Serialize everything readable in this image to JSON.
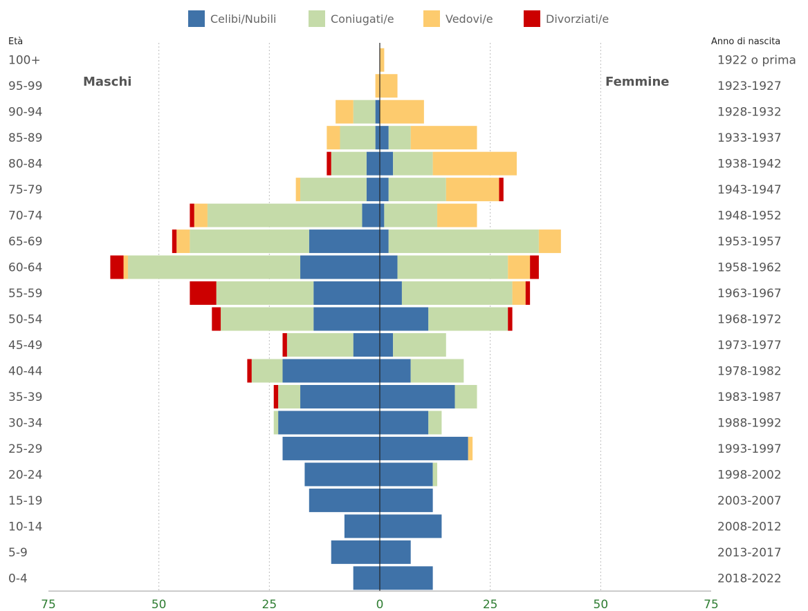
{
  "chart_data": {
    "type": "bar",
    "orientation": "horizontal-pyramid",
    "age_axis_title": "Età",
    "birth_axis_title": "Anno di nascita",
    "left_label": "Maschi",
    "right_label": "Femmine",
    "legend": [
      {
        "name": "Celibi/Nubili",
        "color": "#3f72a8"
      },
      {
        "name": "Coniugati/e",
        "color": "#c5dba9"
      },
      {
        "name": "Vedovi/e",
        "color": "#fdcb6e"
      },
      {
        "name": "Divorziati/e",
        "color": "#cc0000"
      }
    ],
    "xlim": [
      -75,
      75
    ],
    "x_ticks": [
      75,
      50,
      25,
      0,
      25,
      50,
      75
    ],
    "grid": true,
    "legend_position": "top",
    "categories": [
      "100+",
      "95-99",
      "90-94",
      "85-89",
      "80-84",
      "75-79",
      "70-74",
      "65-69",
      "60-64",
      "55-59",
      "50-54",
      "45-49",
      "40-44",
      "35-39",
      "30-34",
      "25-29",
      "20-24",
      "15-19",
      "10-14",
      "5-9",
      "0-4"
    ],
    "birth_years": [
      "1922 o prima",
      "1923-1927",
      "1928-1932",
      "1933-1937",
      "1938-1942",
      "1943-1947",
      "1948-1952",
      "1953-1957",
      "1958-1962",
      "1963-1967",
      "1968-1972",
      "1973-1977",
      "1978-1982",
      "1983-1987",
      "1988-1992",
      "1993-1997",
      "1998-2002",
      "2003-2007",
      "2008-2012",
      "2013-2017",
      "2018-2022"
    ],
    "males": {
      "Celibi/Nubili": [
        0,
        0,
        1,
        1,
        3,
        3,
        4,
        16,
        18,
        15,
        15,
        6,
        22,
        18,
        23,
        22,
        17,
        16,
        8,
        11,
        6
      ],
      "Coniugati/e": [
        0,
        0,
        5,
        8,
        8,
        15,
        35,
        27,
        39,
        22,
        21,
        15,
        7,
        5,
        1,
        0,
        0,
        0,
        0,
        0,
        0
      ],
      "Vedovi/e": [
        0,
        1,
        4,
        3,
        0,
        1,
        3,
        3,
        1,
        0,
        0,
        0,
        0,
        0,
        0,
        0,
        0,
        0,
        0,
        0,
        0
      ],
      "Divorziati/e": [
        0,
        0,
        0,
        0,
        1,
        0,
        1,
        1,
        3,
        6,
        2,
        1,
        1,
        1,
        0,
        0,
        0,
        0,
        0,
        0,
        0
      ]
    },
    "females": {
      "Celibi/Nubili": [
        0,
        0,
        0,
        2,
        3,
        2,
        1,
        2,
        4,
        5,
        11,
        3,
        7,
        17,
        11,
        20,
        12,
        12,
        14,
        7,
        12
      ],
      "Coniugati/e": [
        0,
        0,
        0,
        5,
        9,
        13,
        12,
        34,
        25,
        25,
        18,
        12,
        12,
        5,
        3,
        0,
        1,
        0,
        0,
        0,
        0
      ],
      "Vedovi/e": [
        1,
        4,
        10,
        15,
        19,
        12,
        9,
        5,
        5,
        3,
        0,
        0,
        0,
        0,
        0,
        1,
        0,
        0,
        0,
        0,
        0
      ],
      "Divorziati/e": [
        0,
        0,
        0,
        0,
        0,
        1,
        0,
        0,
        2,
        1,
        1,
        0,
        0,
        0,
        0,
        0,
        0,
        0,
        0,
        0,
        0
      ]
    }
  }
}
